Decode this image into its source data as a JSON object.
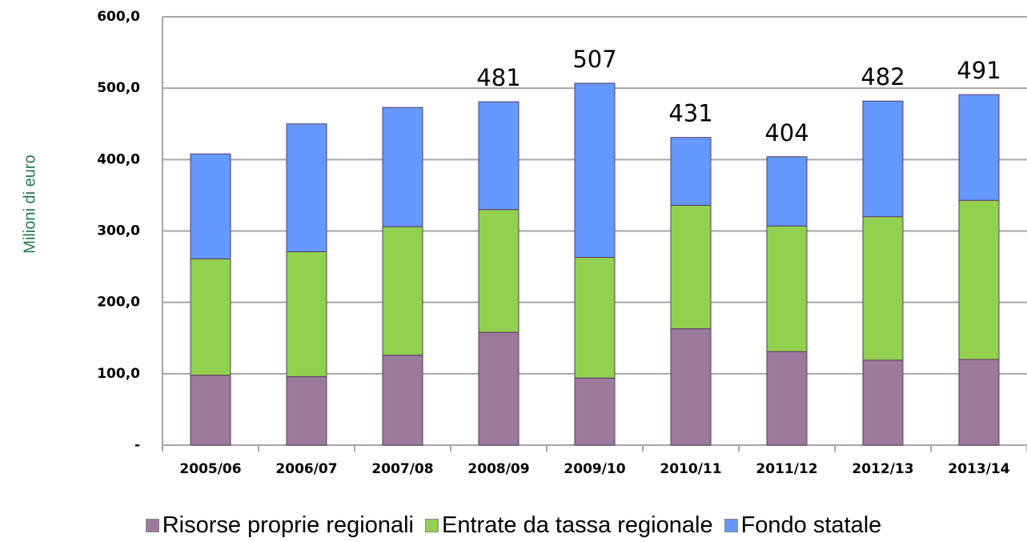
{
  "chart_data": {
    "type": "stacked_bar",
    "y_label": "Milioni di euro",
    "categories": [
      "2005/06",
      "2006/07",
      "2007/08",
      "2008/09",
      "2009/10",
      "2010/11",
      "2011/12",
      "2012/13",
      "2013/14"
    ],
    "series": [
      {
        "name": "Risorse proprie regionali",
        "color": "#9b7a9c",
        "values": [
          98,
          96,
          126,
          158,
          94,
          163,
          131,
          119,
          120
        ]
      },
      {
        "name": "Entrate da tassa regionale",
        "color": "#92d050",
        "values": [
          163,
          175,
          180,
          172,
          169,
          173,
          176,
          201,
          223
        ]
      },
      {
        "name": "Fondo statale",
        "color": "#6699ff",
        "values": [
          147,
          179,
          167,
          151,
          244,
          95,
          97,
          162,
          148
        ]
      }
    ],
    "totals": [
      null,
      null,
      null,
      481,
      507,
      431,
      404,
      482,
      491
    ],
    "ylim": [
      0,
      600
    ],
    "yticks": [
      {
        "value": 0,
        "label": "-"
      },
      {
        "value": 100,
        "label": "100,0"
      },
      {
        "value": 200,
        "label": "200,0"
      },
      {
        "value": 300,
        "label": "300,0"
      },
      {
        "value": 400,
        "label": "400,0"
      },
      {
        "value": 500,
        "label": "500,0"
      },
      {
        "value": 600,
        "label": "600,0"
      }
    ],
    "grid": true
  }
}
